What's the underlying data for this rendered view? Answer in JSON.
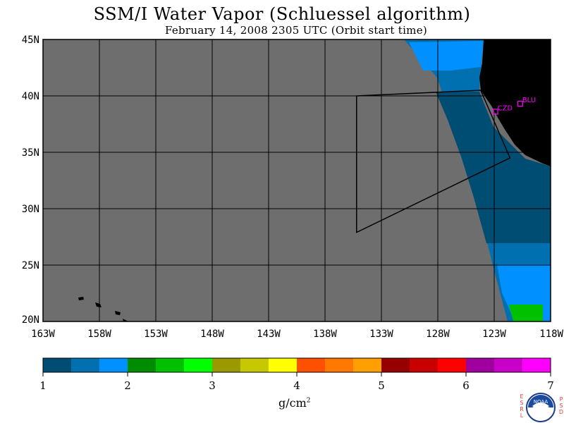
{
  "title": "SSM/I Water Vapor (Schluessel algorithm)",
  "subtitle": "February 14, 2008  2305 UTC  (Orbit start time)",
  "map": {
    "lon_min": -163,
    "lon_max": -118,
    "lat_min": 20,
    "lat_max": 45,
    "lon_ticks": [
      -163,
      -158,
      -153,
      -148,
      -143,
      -138,
      -133,
      -128,
      -123,
      -118
    ],
    "lon_tick_labels": [
      "163W",
      "158W",
      "153W",
      "148W",
      "143W",
      "138W",
      "133W",
      "128W",
      "123W",
      "118W"
    ],
    "lat_ticks": [
      45,
      40,
      35,
      30,
      25,
      20
    ],
    "lat_tick_labels": [
      "45N",
      "40N",
      "35N",
      "30N",
      "25N",
      "20N"
    ],
    "colors": {
      "no_data": "#6e6e6e",
      "land": "#000000",
      "grid": "#000000",
      "station": "#ff00ff"
    },
    "stations": [
      {
        "id": "CZD",
        "lon": -122.9,
        "lat": 38.6
      },
      {
        "id": "BLU",
        "lon": -120.7,
        "lat": 39.3
      }
    ],
    "flight_track": [
      {
        "lon": -135.2,
        "lat": 40.0
      },
      {
        "lon": -135.2,
        "lat": 27.9
      },
      {
        "lon": -121.6,
        "lat": 34.5
      },
      {
        "lon": -124.2,
        "lat": 40.5
      },
      {
        "lon": -135.2,
        "lat": 40.0
      }
    ]
  },
  "colorbar": {
    "min": 1,
    "max": 7,
    "tick_labels": [
      "1",
      "2",
      "3",
      "4",
      "5",
      "6",
      "7"
    ],
    "units": "g/cm",
    "units_exp": "2",
    "colors": [
      "#004d73",
      "#0070b0",
      "#0090ff",
      "#008c00",
      "#00c000",
      "#00ff00",
      "#9a9a00",
      "#c8c800",
      "#ffff00",
      "#ff5000",
      "#ff7800",
      "#ffa000",
      "#960000",
      "#c80000",
      "#ff0000",
      "#a000a0",
      "#c800c8",
      "#ff00ff"
    ]
  },
  "credits": {
    "left_letters": [
      "E",
      "S",
      "R",
      "L"
    ],
    "right_letters": [
      "P",
      "S",
      "D"
    ],
    "logo_text": "NOAA"
  }
}
